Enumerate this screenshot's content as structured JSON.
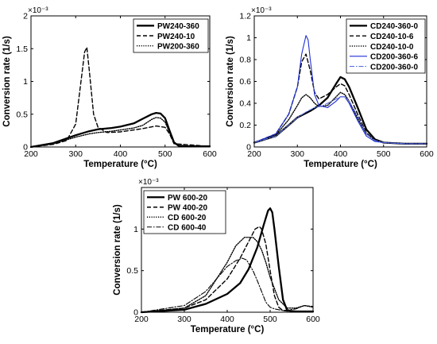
{
  "chart_data": [
    {
      "type": "line",
      "xlabel": "Temperature (°C)",
      "ylabel": "Conversion rate (1/s)",
      "multiplier": "×10⁻³",
      "xlim": [
        200,
        600
      ],
      "ylim": [
        0,
        2
      ],
      "xticks": [
        200,
        300,
        400,
        500,
        600
      ],
      "yticks": [
        0,
        0.5,
        1,
        1.5,
        2
      ],
      "ytick_labels": [
        "0",
        "0.5",
        "1",
        "1.5",
        "2"
      ],
      "grid": false,
      "legend_position": "top-right",
      "series": [
        {
          "name": "PW240-360",
          "color": "#000000",
          "style": "solid-thick",
          "x": [
            200,
            250,
            300,
            330,
            350,
            380,
            400,
            430,
            450,
            470,
            480,
            490,
            500,
            510,
            520,
            530,
            550,
            600
          ],
          "y": [
            0.0,
            0.06,
            0.18,
            0.24,
            0.27,
            0.29,
            0.31,
            0.36,
            0.43,
            0.5,
            0.52,
            0.51,
            0.44,
            0.25,
            0.07,
            0.02,
            0.01,
            0.01
          ]
        },
        {
          "name": "PW240-10",
          "color": "#000000",
          "style": "dashed",
          "x": [
            200,
            250,
            280,
            300,
            310,
            320,
            325,
            330,
            340,
            350,
            370,
            400,
            450,
            480,
            500,
            510,
            520,
            600
          ],
          "y": [
            0.0,
            0.04,
            0.1,
            0.35,
            0.9,
            1.45,
            1.52,
            1.2,
            0.5,
            0.3,
            0.22,
            0.23,
            0.28,
            0.32,
            0.3,
            0.2,
            0.05,
            0.01
          ]
        },
        {
          "name": "PW200-360",
          "color": "#000000",
          "style": "dotted",
          "x": [
            200,
            250,
            300,
            330,
            350,
            380,
            400,
            430,
            450,
            470,
            480,
            490,
            500,
            510,
            520,
            530,
            550,
            600
          ],
          "y": [
            0.0,
            0.05,
            0.15,
            0.2,
            0.22,
            0.24,
            0.26,
            0.29,
            0.33,
            0.42,
            0.45,
            0.44,
            0.38,
            0.22,
            0.06,
            0.02,
            0.01,
            0.01
          ]
        }
      ]
    },
    {
      "type": "line",
      "xlabel": "Temperature (°C)",
      "ylabel": "Conversion rate (1/s)",
      "multiplier": "×10⁻³",
      "xlim": [
        200,
        600
      ],
      "ylim": [
        0,
        1.2
      ],
      "xticks": [
        200,
        300,
        400,
        500,
        600
      ],
      "yticks": [
        0,
        0.2,
        0.4,
        0.6,
        0.8,
        1,
        1.2
      ],
      "ytick_labels": [
        "0",
        "0.2",
        "0.4",
        "0.6",
        "0.8",
        "1",
        "1.2"
      ],
      "grid": false,
      "legend_position": "top-right",
      "series": [
        {
          "name": "CD240-360-0",
          "color": "#000000",
          "style": "solid-thick",
          "x": [
            200,
            250,
            280,
            300,
            330,
            350,
            370,
            390,
            400,
            410,
            420,
            440,
            460,
            480,
            500,
            550,
            600
          ],
          "y": [
            0.04,
            0.1,
            0.2,
            0.27,
            0.33,
            0.38,
            0.45,
            0.58,
            0.64,
            0.62,
            0.55,
            0.36,
            0.16,
            0.07,
            0.04,
            0.03,
            0.03
          ]
        },
        {
          "name": "CD240-10-6",
          "color": "#000000",
          "style": "dashed",
          "x": [
            200,
            250,
            280,
            300,
            310,
            320,
            330,
            340,
            350,
            370,
            390,
            400,
            410,
            420,
            440,
            460,
            480,
            500,
            550,
            600
          ],
          "y": [
            0.04,
            0.12,
            0.3,
            0.55,
            0.78,
            0.85,
            0.7,
            0.5,
            0.44,
            0.48,
            0.55,
            0.58,
            0.56,
            0.48,
            0.3,
            0.13,
            0.06,
            0.04,
            0.03,
            0.03
          ]
        },
        {
          "name": "CD240-10-0",
          "color": "#000000",
          "style": "dotted",
          "x": [
            200,
            250,
            280,
            300,
            310,
            320,
            330,
            340,
            350,
            370,
            390,
            400,
            410,
            420,
            440,
            460,
            480,
            500,
            550,
            600
          ],
          "y": [
            0.04,
            0.11,
            0.25,
            0.38,
            0.45,
            0.48,
            0.45,
            0.4,
            0.37,
            0.38,
            0.46,
            0.5,
            0.48,
            0.42,
            0.26,
            0.12,
            0.06,
            0.04,
            0.03,
            0.03
          ]
        },
        {
          "name": "CD200-360-6",
          "color": "#1f2fd6",
          "style": "solid",
          "x": [
            200,
            250,
            280,
            300,
            310,
            320,
            325,
            330,
            340,
            350,
            370,
            390,
            400,
            410,
            420,
            440,
            460,
            480,
            500,
            550,
            600
          ],
          "y": [
            0.04,
            0.12,
            0.3,
            0.55,
            0.85,
            1.02,
            0.98,
            0.8,
            0.48,
            0.38,
            0.36,
            0.42,
            0.46,
            0.46,
            0.4,
            0.24,
            0.1,
            0.05,
            0.04,
            0.03,
            0.03
          ]
        },
        {
          "name": "CD200-360-0",
          "color": "#5a6fe0",
          "style": "dashdot",
          "x": [
            200,
            250,
            280,
            300,
            320,
            340,
            360,
            380,
            400,
            410,
            420,
            440,
            460,
            480,
            500,
            550,
            600
          ],
          "y": [
            0.04,
            0.1,
            0.2,
            0.27,
            0.32,
            0.36,
            0.38,
            0.42,
            0.46,
            0.46,
            0.42,
            0.28,
            0.12,
            0.06,
            0.04,
            0.03,
            0.03
          ]
        }
      ]
    },
    {
      "type": "line",
      "xlabel": "Temperature (°C)",
      "ylabel": "Conversion rate (1/s)",
      "multiplier": "×10⁻³",
      "xlim": [
        200,
        600
      ],
      "ylim": [
        0,
        1.5
      ],
      "xticks": [
        200,
        300,
        400,
        500,
        600
      ],
      "yticks": [
        0,
        0.5,
        1
      ],
      "ytick_labels": [
        "0",
        "0.5",
        "1"
      ],
      "grid": false,
      "legend_position": "top-left",
      "series": [
        {
          "name": "PW 600-20",
          "color": "#000000",
          "style": "solid-thick",
          "x": [
            200,
            300,
            350,
            400,
            430,
            450,
            470,
            485,
            495,
            500,
            505,
            510,
            520,
            530,
            540,
            560,
            600
          ],
          "y": [
            0.0,
            0.03,
            0.1,
            0.22,
            0.35,
            0.52,
            0.78,
            1.05,
            1.22,
            1.25,
            1.2,
            1.0,
            0.55,
            0.15,
            0.02,
            0.01,
            0.01
          ]
        },
        {
          "name": "PW 400-20",
          "color": "#000000",
          "style": "dashed",
          "x": [
            200,
            300,
            350,
            400,
            430,
            450,
            465,
            475,
            480,
            490,
            500,
            510,
            520,
            530,
            550,
            600
          ],
          "y": [
            0.0,
            0.05,
            0.15,
            0.4,
            0.65,
            0.85,
            1.0,
            1.03,
            1.0,
            0.82,
            0.5,
            0.2,
            0.06,
            0.02,
            0.01,
            0.01
          ]
        },
        {
          "name": "CD 600-20",
          "color": "#000000",
          "style": "dotted",
          "x": [
            200,
            300,
            350,
            400,
            420,
            440,
            460,
            470,
            480,
            490,
            500,
            520,
            540,
            560,
            580,
            600
          ],
          "y": [
            0.0,
            0.05,
            0.2,
            0.6,
            0.8,
            0.9,
            0.9,
            0.85,
            0.75,
            0.6,
            0.42,
            0.15,
            0.05,
            0.05,
            0.08,
            0.06
          ]
        },
        {
          "name": "CD 600-40",
          "color": "#000000",
          "style": "dashdot",
          "x": [
            200,
            300,
            350,
            400,
            420,
            435,
            445,
            460,
            470,
            480,
            490,
            500,
            510,
            530,
            560,
            580,
            600
          ],
          "y": [
            0.0,
            0.08,
            0.25,
            0.55,
            0.62,
            0.65,
            0.63,
            0.5,
            0.38,
            0.25,
            0.12,
            0.06,
            0.04,
            0.02,
            0.04,
            0.08,
            0.07
          ]
        }
      ]
    }
  ]
}
